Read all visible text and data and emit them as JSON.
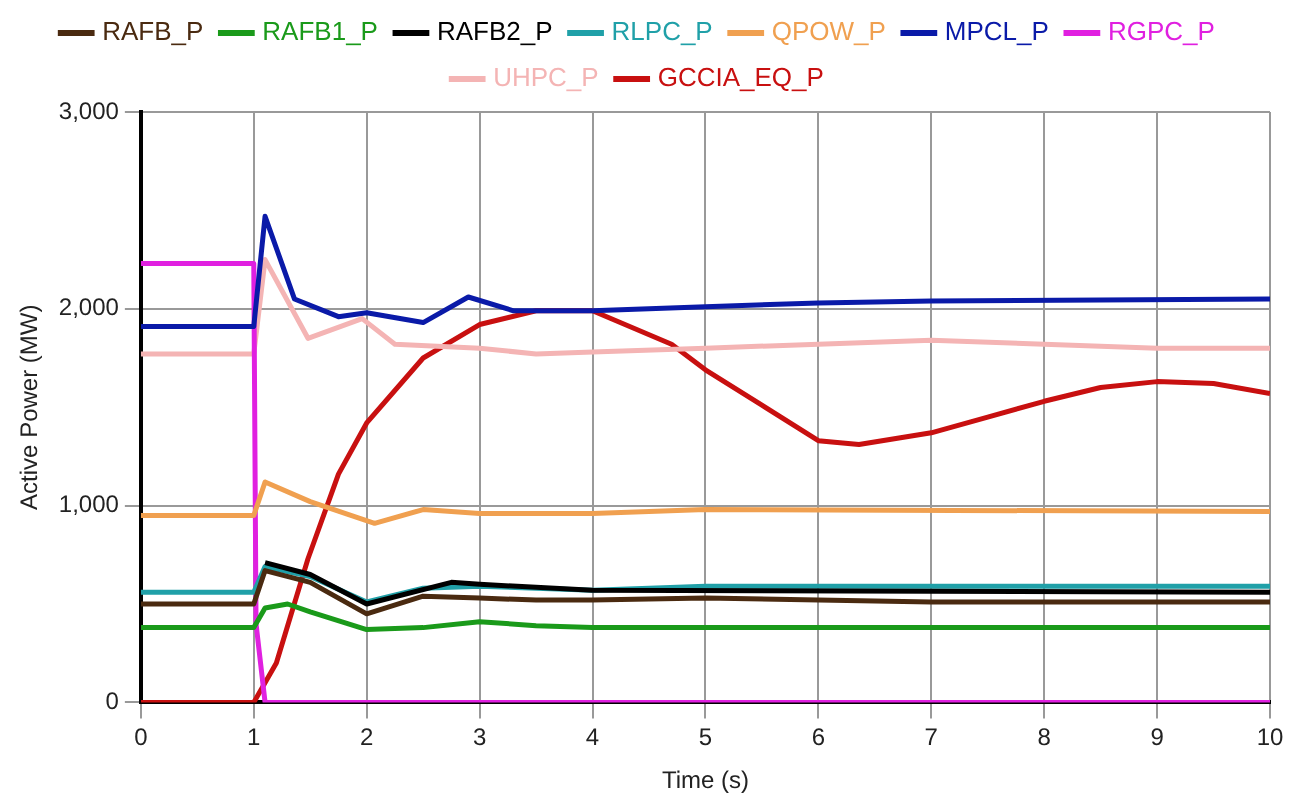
{
  "chart_data": {
    "type": "line",
    "xlabel": "Time (s)",
    "ylabel": "Active Power (MW)",
    "xlim": [
      0,
      10
    ],
    "ylim": [
      0,
      3000
    ],
    "xticks": [
      0,
      1,
      2,
      3,
      4,
      5,
      6,
      7,
      8,
      9,
      10
    ],
    "yticks": [
      0,
      {
        "value": 1000,
        "label": "1,000"
      },
      {
        "value": 2000,
        "label": "2,000"
      },
      {
        "value": 3000,
        "label": "3,000"
      }
    ],
    "grid": true,
    "legend": "top",
    "marker": "none",
    "line_style": "solid",
    "series": [
      {
        "name": "RAFB_P",
        "color": "#4a2a10",
        "x": [
          0,
          1,
          1.1,
          1.5,
          2,
          2.5,
          3,
          3.5,
          4,
          5,
          7,
          10
        ],
        "values": [
          500,
          500,
          670,
          610,
          450,
          540,
          530,
          520,
          520,
          530,
          510,
          510
        ]
      },
      {
        "name": "RAFB1_P",
        "color": "#1a9a1a",
        "x": [
          0,
          1,
          1.1,
          1.3,
          1.5,
          2,
          2.5,
          3,
          3.5,
          4,
          10
        ],
        "values": [
          380,
          380,
          480,
          500,
          460,
          370,
          380,
          410,
          390,
          380,
          380
        ]
      },
      {
        "name": "RAFB2_P",
        "color": "#000000",
        "x": [
          1.1,
          1.5,
          2,
          2.75,
          3,
          4,
          10
        ],
        "values": [
          710,
          650,
          500,
          610,
          600,
          570,
          560
        ]
      },
      {
        "name": "RLPC_P",
        "color": "#20a0a8",
        "x": [
          0,
          1,
          1.1,
          1.5,
          2,
          2.5,
          3,
          4,
          5,
          10
        ],
        "values": [
          560,
          560,
          690,
          640,
          510,
          580,
          590,
          570,
          590,
          590
        ]
      },
      {
        "name": "QPOW_P",
        "color": "#f0a050",
        "x": [
          0,
          1,
          1.1,
          1.5,
          2.07,
          2.5,
          3,
          4,
          5,
          10
        ],
        "values": [
          950,
          950,
          1120,
          1020,
          910,
          980,
          960,
          960,
          980,
          970
        ]
      },
      {
        "name": "MPCL_P",
        "color": "#0a1aa8",
        "x": [
          0,
          1,
          1.1,
          1.36,
          1.75,
          2,
          2.5,
          2.9,
          3.3,
          4,
          5,
          6,
          7,
          10
        ],
        "values": [
          1910,
          1910,
          2470,
          2050,
          1960,
          1980,
          1930,
          2060,
          1990,
          1990,
          2010,
          2030,
          2040,
          2050
        ]
      },
      {
        "name": "RGPC_P",
        "color": "#e020e0",
        "x": [
          0,
          1,
          1.02,
          1.1,
          10
        ],
        "values": [
          2230,
          2230,
          400,
          0,
          0
        ]
      },
      {
        "name": "UHPC_P",
        "color": "#f4b4b4",
        "x": [
          0,
          1,
          1.1,
          1.48,
          1.96,
          2.25,
          3,
          3.5,
          4,
          5,
          6,
          7,
          8,
          9,
          10
        ],
        "values": [
          1770,
          1770,
          2250,
          1850,
          1950,
          1820,
          1800,
          1770,
          1780,
          1800,
          1820,
          1840,
          1820,
          1800,
          1800
        ]
      },
      {
        "name": "GCCIA_EQ_P",
        "color": "#c81010",
        "x": [
          0,
          1,
          1.2,
          1.48,
          1.75,
          2,
          2.5,
          3,
          3.5,
          4,
          4.7,
          5,
          5.5,
          6,
          6.36,
          7,
          7.5,
          8,
          8.5,
          9,
          9.5,
          10
        ],
        "values": [
          0,
          0,
          200,
          730,
          1160,
          1420,
          1750,
          1920,
          1990,
          1990,
          1820,
          1690,
          1510,
          1330,
          1310,
          1370,
          1450,
          1530,
          1600,
          1630,
          1620,
          1570
        ]
      }
    ]
  }
}
